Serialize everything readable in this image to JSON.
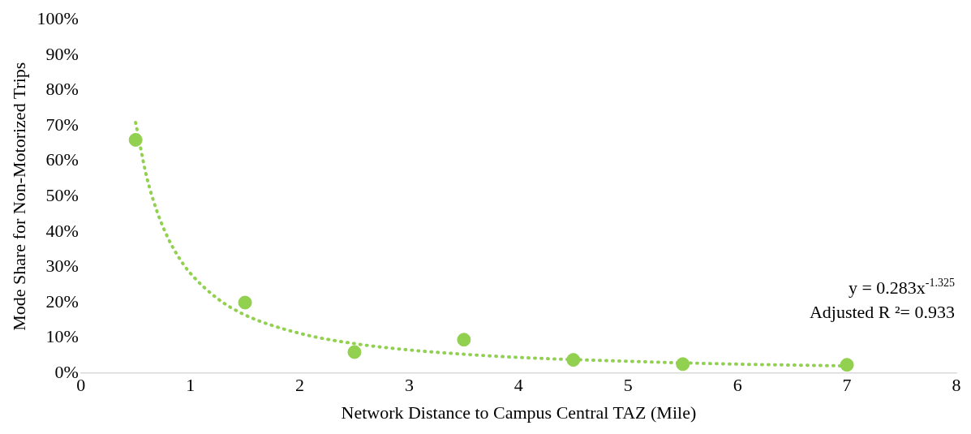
{
  "chart_data": {
    "type": "scatter",
    "xlabel": "Network Distance to Campus Central TAZ (Mile)",
    "ylabel": "Mode Share for Non-Motorized Trips",
    "xlim": [
      0,
      8
    ],
    "xticks": [
      0,
      1,
      2,
      3,
      4,
      5,
      6,
      7,
      8
    ],
    "ylim": [
      0,
      100
    ],
    "yticks": [
      {
        "value": 0,
        "label": "0%"
      },
      {
        "value": 10,
        "label": "10%"
      },
      {
        "value": 20,
        "label": "20%"
      },
      {
        "value": 30,
        "label": "30%"
      },
      {
        "value": 40,
        "label": "40%"
      },
      {
        "value": 50,
        "label": "50%"
      },
      {
        "value": 60,
        "label": "60%"
      },
      {
        "value": 70,
        "label": "70%"
      },
      {
        "value": 80,
        "label": "80%"
      },
      {
        "value": 90,
        "label": "90%"
      },
      {
        "value": 100,
        "label": "100%"
      }
    ],
    "grid": false,
    "marker": "circle",
    "series": [
      {
        "type": "scatter",
        "color": "#92d050",
        "x": [
          0.5,
          1.5,
          2.5,
          3.5,
          4.5,
          5.5,
          7
        ],
        "values": [
          66,
          20,
          6,
          9.5,
          3.8,
          2.6,
          2.4
        ]
      },
      {
        "type": "line",
        "color": "#92d050",
        "line_style": "dotted",
        "marker": "none",
        "x": [
          0.5,
          0.6,
          0.7,
          0.8,
          0.9,
          1,
          1.25,
          1.5,
          2,
          2.5,
          3,
          3.5,
          4,
          5,
          6,
          7
        ],
        "values": [
          70.9,
          55.7,
          45.4,
          38.0,
          32.5,
          28.3,
          21.1,
          16.5,
          11.3,
          8.4,
          6.6,
          5.4,
          4.5,
          3.4,
          2.6,
          2.1
        ]
      }
    ],
    "annotations": [
      "y = 0.283x$^{-1.325}$",
      "Adjusted R ²= 0.933"
    ]
  }
}
